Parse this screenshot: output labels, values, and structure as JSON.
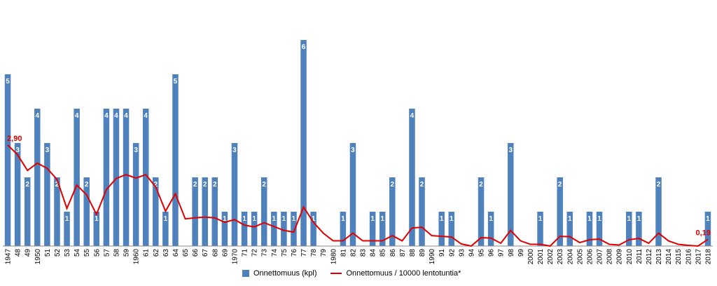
{
  "chart_data": {
    "type": "bar",
    "categories": [
      "1947",
      "48",
      "49",
      "1950",
      "51",
      "52",
      "53",
      "54",
      "55",
      "56",
      "57",
      "58",
      "59",
      "1960",
      "61",
      "62",
      "63",
      "64",
      "65",
      "66",
      "67",
      "68",
      "69",
      "1970",
      "71",
      "72",
      "73",
      "74",
      "75",
      "76",
      "77",
      "78",
      "79",
      "1980",
      "81",
      "82",
      "83",
      "84",
      "85",
      "86",
      "87",
      "88",
      "89",
      "1990",
      "91",
      "92",
      "93",
      "94",
      "95",
      "96",
      "97",
      "98",
      "99",
      "2000",
      "2001",
      "2002",
      "2003",
      "2004",
      "2005",
      "2006",
      "2007",
      "2008",
      "2009",
      "2010",
      "2011",
      "2012",
      "2013",
      "2014",
      "2015",
      "2016",
      "2017",
      "2018"
    ],
    "series": [
      {
        "name": "Onnettomuus (kpl)",
        "type": "bar",
        "color": "#4f81bd",
        "values": [
          5,
          3,
          2,
          4,
          3,
          2,
          1,
          4,
          2,
          1,
          4,
          4,
          4,
          3,
          4,
          2,
          1,
          5,
          0,
          2,
          2,
          2,
          1,
          3,
          1,
          1,
          2,
          1,
          1,
          1,
          6,
          1,
          0,
          0,
          1,
          3,
          0,
          1,
          1,
          2,
          0,
          4,
          2,
          0,
          1,
          1,
          0,
          0,
          2,
          1,
          0,
          3,
          0,
          0,
          1,
          0,
          2,
          1,
          0,
          1,
          1,
          0,
          0,
          1,
          1,
          0,
          2,
          0,
          0,
          0,
          0,
          1
        ]
      },
      {
        "name": "Onnettomuus / 10000 lentotuntia*",
        "type": "line",
        "color": "#e00000",
        "values": [
          2.9,
          2.62,
          2.17,
          2.38,
          2.23,
          1.91,
          1.08,
          1.75,
          1.47,
          0.91,
          1.62,
          1.94,
          2.05,
          1.95,
          2.05,
          1.7,
          1.0,
          1.5,
          0.78,
          0.81,
          0.83,
          0.81,
          0.68,
          0.76,
          0.6,
          0.55,
          0.67,
          0.56,
          0.45,
          0.4,
          1.12,
          0.68,
          0.37,
          0.15,
          0.15,
          0.37,
          0.15,
          0.15,
          0.15,
          0.3,
          0.15,
          0.52,
          0.54,
          0.3,
          0.28,
          0.26,
          0.06,
          0.0,
          0.24,
          0.23,
          0.08,
          0.45,
          0.15,
          0.05,
          0.05,
          0.0,
          0.28,
          0.27,
          0.1,
          0.18,
          0.2,
          0.05,
          0.03,
          0.18,
          0.22,
          0.08,
          0.37,
          0.15,
          0.05,
          0.02,
          0.0,
          0.19
        ]
      }
    ],
    "data_labels": {
      "line_first": "2,90",
      "line_last": "0,19"
    },
    "ylim": [
      0,
      6
    ],
    "legend_position": "bottom",
    "grid": false
  }
}
